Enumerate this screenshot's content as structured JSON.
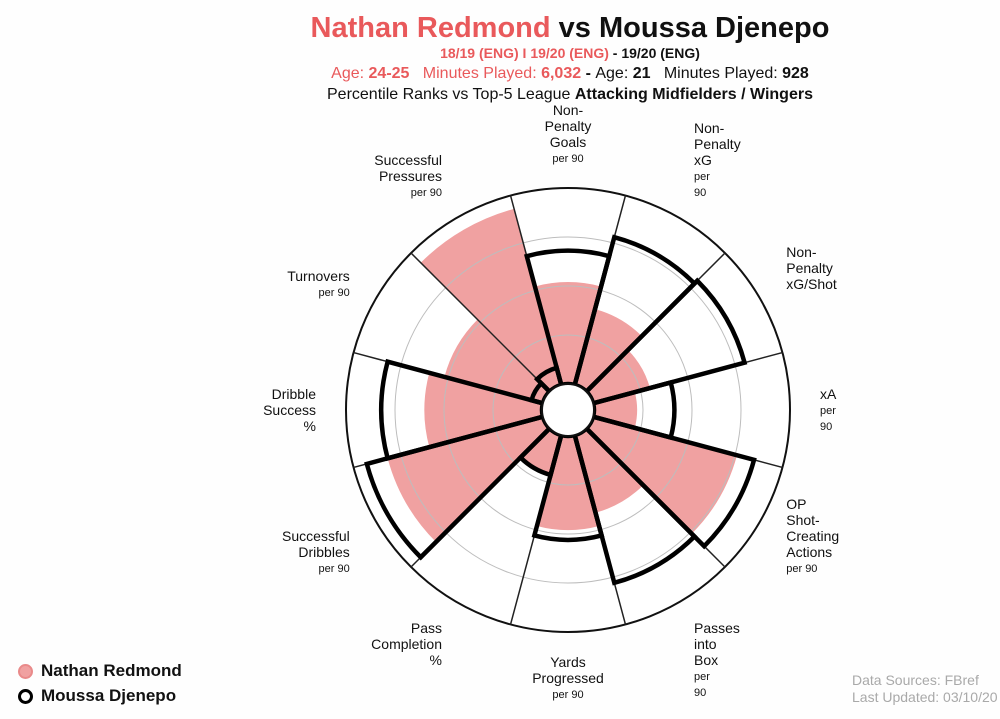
{
  "header": {
    "player1": "Nathan Redmond",
    "vs": "vs",
    "player2": "Moussa Djenepo",
    "seasons1": "18/19 (ENG)  I 19/20 (ENG)",
    "seasons2": " - 19/20 (ENG)",
    "age_label": "Age: ",
    "age1": "24-25",
    "mins_label": "Minutes Played: ",
    "mins1": "6,032",
    "sep": " - ",
    "age2": "21",
    "mins2": "928",
    "subtitle_prefix": "Percentile Ranks vs Top-5 League ",
    "subtitle_bold": "Attacking Midfielders / Wingers"
  },
  "colors": {
    "player1": "#e9595b",
    "player1_fill": "#f0a1a1",
    "player2": "#000000"
  },
  "chart_data": {
    "type": "radar-percentile",
    "range": [
      0,
      100
    ],
    "categories": [
      {
        "label": "Non-\nPenalty\nGoals",
        "unit": "per 90",
        "anchor": "middle"
      },
      {
        "label": "Non-\nPenalty\nxG",
        "unit": "per\n90",
        "anchor": "start"
      },
      {
        "label": "Non-\nPenalty\nxG/Shot",
        "unit": "",
        "anchor": "start"
      },
      {
        "label": "xA",
        "unit": "per\n90",
        "anchor": "start"
      },
      {
        "label": "OP\nShot-\nCreating\nActions",
        "unit": "per 90",
        "anchor": "start"
      },
      {
        "label": "Passes\ninto\nBox",
        "unit": "per\n90",
        "anchor": "start"
      },
      {
        "label": "Yards\nProgressed",
        "unit": "per 90",
        "anchor": "middle"
      },
      {
        "label": "Pass\nCompletion\n%",
        "unit": "",
        "anchor": "end"
      },
      {
        "label": "Successful\nDribbles",
        "unit": "per 90",
        "anchor": "end"
      },
      {
        "label": "Dribble\nSuccess\n%",
        "unit": "",
        "anchor": "end"
      },
      {
        "label": "Turnovers",
        "unit": "per 90",
        "anchor": "end"
      },
      {
        "label": "Successful\nPressures",
        "unit": "per 90",
        "anchor": "end"
      }
    ],
    "series": [
      {
        "name": "Nathan Redmond",
        "values": [
          52,
          40,
          30,
          22,
          76,
          41,
          48,
          20,
          82,
          60,
          52,
          93
        ]
      },
      {
        "name": "Moussa Djenepo",
        "values": [
          68,
          78,
          80,
          41,
          85,
          78,
          53,
          21,
          93,
          82,
          6,
          9
        ]
      }
    ]
  },
  "legend": {
    "item1": "Nathan Redmond",
    "item2": "Moussa Djenepo"
  },
  "sources": {
    "line1": "Data Sources: FBref",
    "line2": "Last Updated: 03/10/20"
  }
}
